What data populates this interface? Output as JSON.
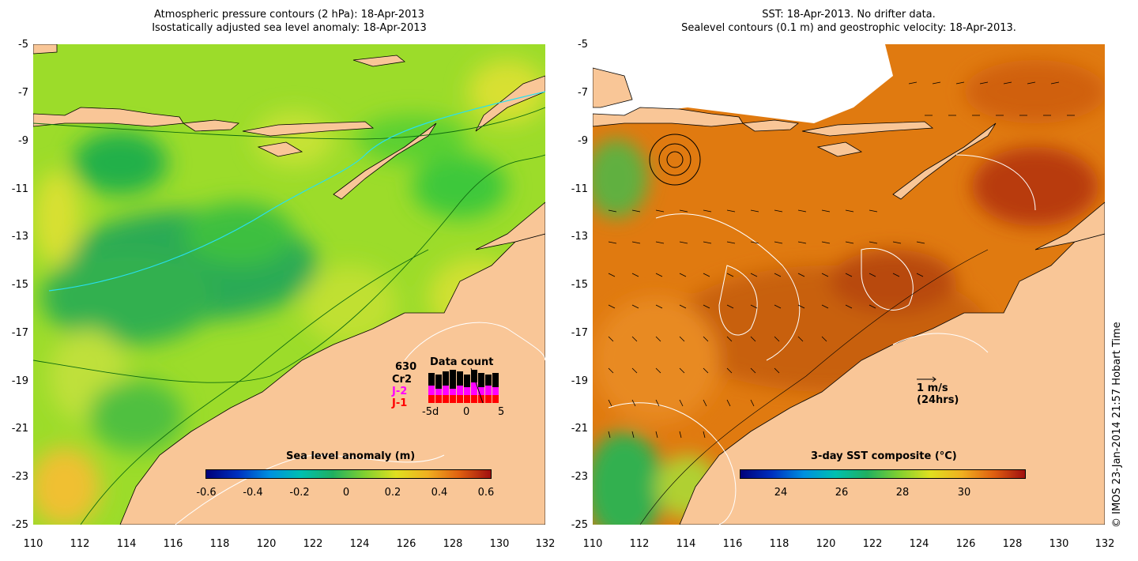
{
  "left_panel": {
    "title_line1": "Atmospheric pressure contours (2 hPa): 18-Apr-2013",
    "title_line2": "Isostatically adjusted sea level anomaly: 18-Apr-2013",
    "colorbar_title": "Sea level anomaly (m)",
    "colorbar_ticks": [
      "-0.6",
      "-0.4",
      "-0.2",
      "0",
      "0.2",
      "0.4",
      "0.6"
    ],
    "colorbar_range": [
      -0.6,
      0.6
    ],
    "legend": {
      "count": "630",
      "rows": [
        "Cr2",
        "J-2",
        "J-1"
      ],
      "row_colors": [
        "#000000",
        "#ff00ff",
        "#ff0000"
      ],
      "title": "Data count",
      "ticks": [
        "-5d",
        "0",
        "5"
      ]
    }
  },
  "right_panel": {
    "title_line1": "SST: 18-Apr-2013. No drifter data.",
    "title_line2": "Sealevel contours (0.1 m) and geostrophic velocity: 18-Apr-2013.",
    "colorbar_title": "3-day SST composite (°C)",
    "colorbar_ticks": [
      "24",
      "26",
      "28",
      "30"
    ],
    "colorbar_range": [
      22.3,
      31.6
    ],
    "velocity_scale_label": "1 m/s",
    "velocity_scale_sub": "(24hrs)"
  },
  "axes": {
    "lat_ticks": [
      "-5",
      "-7",
      "-9",
      "-11",
      "-13",
      "-15",
      "-17",
      "-19",
      "-21",
      "-23",
      "-25"
    ],
    "lon_ticks": [
      "110",
      "112",
      "114",
      "116",
      "118",
      "120",
      "122",
      "124",
      "126",
      "128",
      "130",
      "132"
    ],
    "lon_range": [
      110,
      132
    ],
    "lat_range": [
      -25,
      -5
    ]
  },
  "credit": "© IMOS 23-Jan-2014 21:57 Hobart Time",
  "colors": {
    "land": "#f9c697",
    "sla_ocean": "#9cdc2a",
    "sst_ocean": "#e07a10"
  }
}
